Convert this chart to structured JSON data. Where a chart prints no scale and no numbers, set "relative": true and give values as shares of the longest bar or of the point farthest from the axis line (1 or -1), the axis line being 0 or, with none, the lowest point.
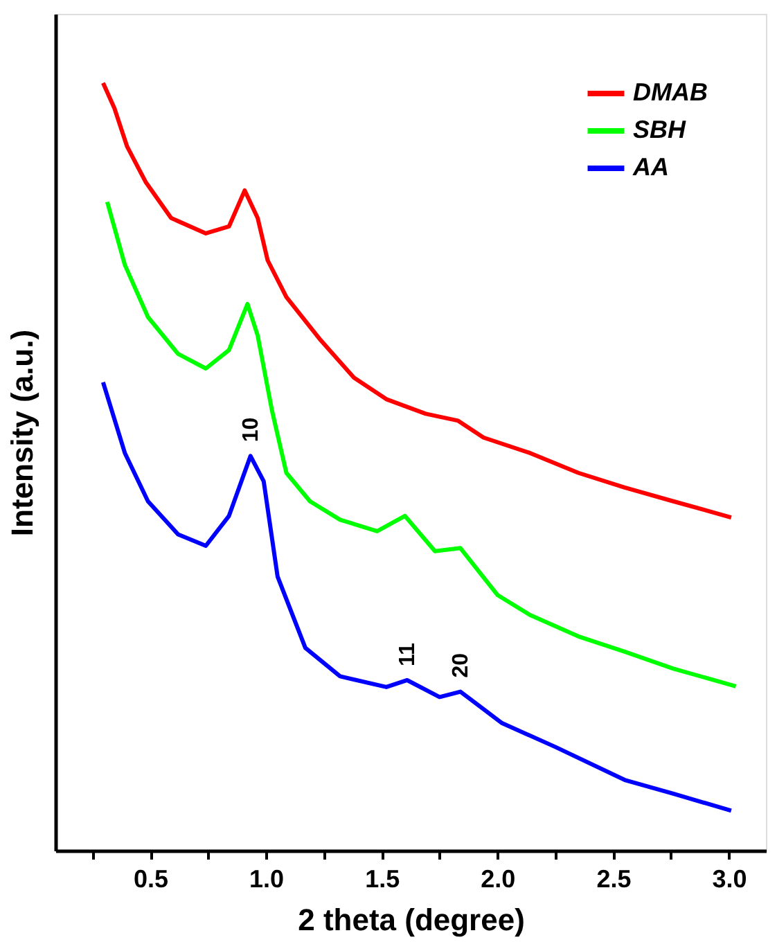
{
  "chart_data": {
    "type": "line",
    "xlabel": "2 theta (degree)",
    "ylabel": "Intensity (a.u.)",
    "relative": true,
    "xlim": [
      0.09,
      3.16
    ],
    "xticks": [
      {
        "value": 0.25,
        "label": null
      },
      0.5,
      {
        "value": 0.75,
        "label": null
      },
      {
        "value": 1,
        "label": "1.0"
      },
      {
        "value": 1.25,
        "label": null
      },
      1.5,
      {
        "value": 1.75,
        "label": null
      },
      {
        "value": 2,
        "label": "2.0"
      },
      {
        "value": 2.25,
        "label": null
      },
      2.5,
      {
        "value": 2.75,
        "label": null
      },
      {
        "value": 3,
        "label": "3.0"
      }
    ],
    "legend": "top right",
    "grid": false,
    "series": [
      {
        "name": "DMAB",
        "color": "#ff0000",
        "x": [
          0.296,
          0.345,
          0.4,
          0.48,
          0.59,
          0.74,
          0.84,
          0.908,
          0.964,
          1.007,
          1.088,
          1.236,
          1.38,
          1.52,
          1.69,
          1.83,
          1.94,
          2.14,
          2.35,
          2.55,
          2.76,
          3.01
        ],
        "values": [
          1.0,
          0.967,
          0.917,
          0.871,
          0.824,
          0.804,
          0.813,
          0.86,
          0.824,
          0.769,
          0.721,
          0.665,
          0.616,
          0.588,
          0.569,
          0.56,
          0.538,
          0.518,
          0.492,
          0.473,
          0.455,
          0.434
        ]
      },
      {
        "name": "SBH",
        "color": "#00ff00",
        "x": [
          0.314,
          0.39,
          0.49,
          0.62,
          0.74,
          0.84,
          0.92,
          0.964,
          1.026,
          1.088,
          1.19,
          1.32,
          1.48,
          1.6,
          1.73,
          1.84,
          2.0,
          2.14,
          2.35,
          2.55,
          2.76,
          3.03
        ],
        "values": [
          0.845,
          0.763,
          0.695,
          0.647,
          0.628,
          0.652,
          0.712,
          0.671,
          0.573,
          0.492,
          0.455,
          0.431,
          0.416,
          0.436,
          0.39,
          0.394,
          0.333,
          0.307,
          0.279,
          0.259,
          0.237,
          0.214
        ]
      },
      {
        "name": "AA",
        "color": "#0000ff",
        "x": [
          0.296,
          0.39,
          0.49,
          0.62,
          0.74,
          0.84,
          0.933,
          0.99,
          1.05,
          1.17,
          1.32,
          1.52,
          1.61,
          1.75,
          1.84,
          2.02,
          2.25,
          2.55,
          2.76,
          3.01
        ],
        "values": [
          0.61,
          0.518,
          0.455,
          0.412,
          0.397,
          0.436,
          0.514,
          0.481,
          0.357,
          0.264,
          0.227,
          0.213,
          0.222,
          0.2,
          0.207,
          0.166,
          0.135,
          0.092,
          0.074,
          0.052
        ]
      }
    ],
    "annotations": [
      {
        "text": "10",
        "x": 0.933,
        "y": 0.514
      },
      {
        "text": "11",
        "x": 1.61,
        "y": 0.222
      },
      {
        "text": "20",
        "x": 1.84,
        "y": 0.207
      }
    ]
  }
}
